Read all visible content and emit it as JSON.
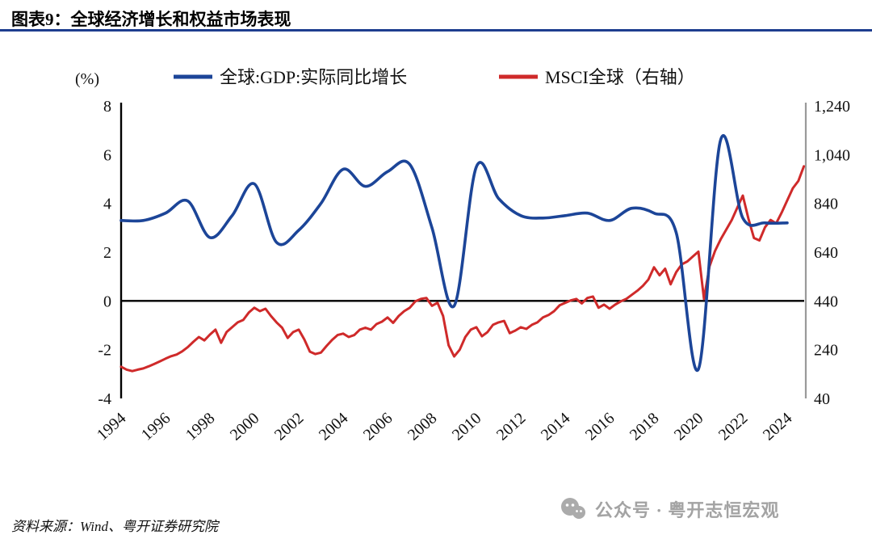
{
  "header": {
    "title": "图表9：全球经济增长和权益市场表现"
  },
  "footer": {
    "source": "资料来源：Wind、粤开证券研究院"
  },
  "watermark": {
    "text": "公众号 · 粤开志恒宏观"
  },
  "chart_data": {
    "type": "line",
    "title": "图表9：全球经济增长和权益市场表现",
    "x_range": [
      1994,
      2024
    ],
    "x_ticks": [
      "1994",
      "1996",
      "1998",
      "2000",
      "2002",
      "2004",
      "2006",
      "2008",
      "2010",
      "2012",
      "2014",
      "2016",
      "2018",
      "2020",
      "2022",
      "2024"
    ],
    "left_axis": {
      "label": "(%)",
      "range": [
        -4,
        8
      ],
      "ticks": [
        8,
        6,
        4,
        2,
        0,
        -2,
        -4
      ]
    },
    "right_axis": {
      "range": [
        40,
        1240
      ],
      "ticks": [
        "1,240",
        "1,040",
        "840",
        "640",
        "440",
        "240",
        "40"
      ]
    },
    "legend_position": "top",
    "grid": false,
    "series": [
      {
        "name": "全球:GDP:实际同比增长",
        "axis": "left",
        "color": "#1c4598",
        "smooth": true,
        "x_start": 1994,
        "x_step": 1,
        "values": [
          3.3,
          3.3,
          3.6,
          4.1,
          2.6,
          3.5,
          4.8,
          2.4,
          2.9,
          4.0,
          5.4,
          4.7,
          5.3,
          5.6,
          3.0,
          -0.2,
          5.5,
          4.2,
          3.5,
          3.4,
          3.5,
          3.6,
          3.3,
          3.8,
          3.6,
          2.8,
          -2.8,
          6.6,
          3.4,
          3.2,
          3.2
        ]
      },
      {
        "name": "MSCI全球（右轴）",
        "axis": "right",
        "color": "#cf2a2a",
        "smooth": false,
        "x_start": 1994,
        "x_step": 0.25,
        "values": [
          170,
          158,
          152,
          158,
          163,
          172,
          182,
          192,
          203,
          213,
          220,
          233,
          250,
          272,
          292,
          278,
          302,
          322,
          268,
          312,
          332,
          352,
          362,
          392,
          412,
          398,
          408,
          378,
          352,
          330,
          288,
          312,
          322,
          282,
          232,
          222,
          228,
          255,
          280,
          300,
          306,
          292,
          300,
          322,
          330,
          322,
          345,
          355,
          372,
          350,
          378,
          398,
          412,
          438,
          448,
          452,
          420,
          432,
          378,
          258,
          212,
          240,
          292,
          322,
          332,
          295,
          312,
          342,
          352,
          358,
          308,
          318,
          332,
          325,
          342,
          352,
          372,
          382,
          398,
          422,
          432,
          442,
          448,
          430,
          452,
          458,
          412,
          425,
          408,
          425,
          438,
          448,
          465,
          482,
          502,
          528,
          578,
          545,
          572,
          508,
          558,
          590,
          602,
          622,
          642,
          448,
          582,
          645,
          692,
          732,
          772,
          822,
          872,
          778,
          698,
          688,
          742,
          772,
          758,
          802,
          852,
          902,
          932,
          992
        ]
      }
    ]
  }
}
